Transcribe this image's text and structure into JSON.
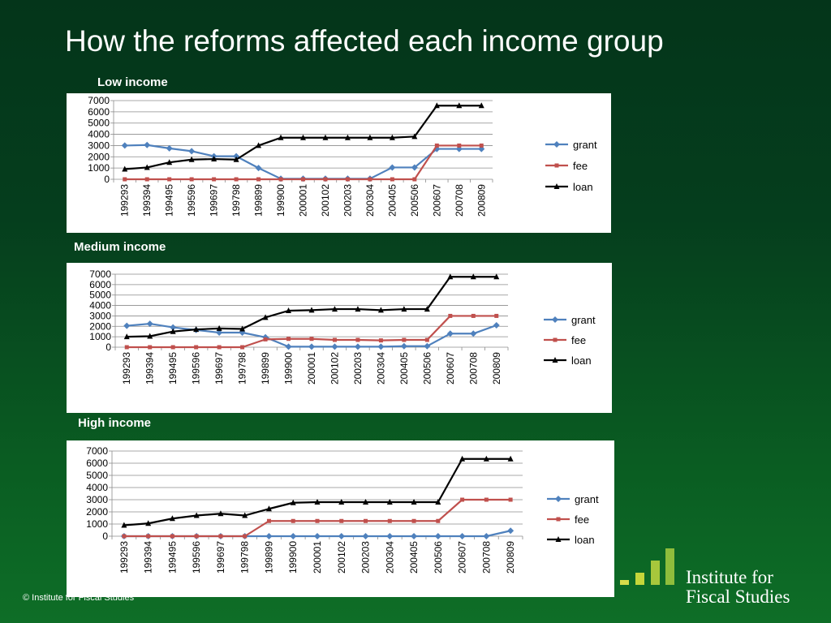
{
  "slide": {
    "title": "How the reforms affected each income group",
    "footer": "© Institute for Fiscal Studies",
    "logo": {
      "line1": "Institute for",
      "line2": "Fiscal Studies",
      "bar_colors": [
        "#d7dc4a",
        "#c5d63a",
        "#a7c73c",
        "#8fbd3c"
      ]
    }
  },
  "colors": {
    "grant": "#4f81bd",
    "fee": "#c0504d",
    "loan": "#000000"
  },
  "chart_data": [
    {
      "type": "line",
      "title": "Low income",
      "categories": [
        "199293",
        "199394",
        "199495",
        "199596",
        "199697",
        "199798",
        "199899",
        "199900",
        "200001",
        "200102",
        "200203",
        "200304",
        "200405",
        "200506",
        "200607",
        "200708",
        "200809"
      ],
      "ylim": [
        0,
        7000
      ],
      "yticks": [
        0,
        1000,
        2000,
        3000,
        4000,
        5000,
        6000,
        7000
      ],
      "grid": "horizontal",
      "legend": "right",
      "series": [
        {
          "name": "grant",
          "marker": "diamond",
          "values": [
            3000,
            3050,
            2750,
            2500,
            2050,
            2050,
            1000,
            50,
            50,
            50,
            50,
            50,
            1050,
            1050,
            2700,
            2700,
            2700
          ]
        },
        {
          "name": "fee",
          "marker": "square",
          "values": [
            0,
            0,
            0,
            0,
            0,
            0,
            0,
            0,
            0,
            0,
            0,
            0,
            0,
            0,
            3000,
            3000,
            3000
          ]
        },
        {
          "name": "loan",
          "marker": "triangle",
          "values": [
            900,
            1050,
            1500,
            1750,
            1800,
            1750,
            3000,
            3700,
            3700,
            3700,
            3700,
            3700,
            3700,
            3800,
            6550,
            6550,
            6550
          ]
        }
      ]
    },
    {
      "type": "line",
      "title": "Medium income",
      "categories": [
        "199293",
        "199394",
        "199495",
        "199596",
        "199697",
        "199798",
        "199899",
        "199900",
        "200001",
        "200102",
        "200203",
        "200304",
        "200405",
        "200506",
        "200607",
        "200708",
        "200809"
      ],
      "ylim": [
        0,
        7000
      ],
      "yticks": [
        0,
        1000,
        2000,
        3000,
        4000,
        5000,
        6000,
        7000
      ],
      "grid": "horizontal",
      "legend": "right",
      "series": [
        {
          "name": "grant",
          "marker": "diamond",
          "values": [
            2050,
            2250,
            1900,
            1650,
            1400,
            1400,
            950,
            50,
            50,
            50,
            50,
            50,
            100,
            100,
            1300,
            1300,
            2100
          ]
        },
        {
          "name": "fee",
          "marker": "square",
          "values": [
            0,
            0,
            0,
            0,
            0,
            0,
            750,
            800,
            800,
            700,
            700,
            650,
            700,
            700,
            3000,
            3000,
            3000
          ]
        },
        {
          "name": "loan",
          "marker": "triangle",
          "values": [
            1000,
            1050,
            1500,
            1700,
            1800,
            1750,
            2850,
            3500,
            3550,
            3650,
            3650,
            3550,
            3650,
            3650,
            6750,
            6750,
            6750
          ]
        }
      ]
    },
    {
      "type": "line",
      "title": "High income",
      "categories": [
        "199293",
        "199394",
        "199495",
        "199596",
        "199697",
        "199798",
        "199899",
        "199900",
        "200001",
        "200102",
        "200203",
        "200304",
        "200405",
        "200506",
        "200607",
        "200708",
        "200809"
      ],
      "ylim": [
        0,
        7000
      ],
      "yticks": [
        0,
        1000,
        2000,
        3000,
        4000,
        5000,
        6000,
        7000
      ],
      "grid": "horizontal",
      "legend": "right",
      "series": [
        {
          "name": "grant",
          "marker": "diamond",
          "values": [
            0,
            0,
            0,
            0,
            0,
            0,
            0,
            0,
            0,
            0,
            0,
            0,
            0,
            0,
            0,
            0,
            450
          ]
        },
        {
          "name": "fee",
          "marker": "square",
          "values": [
            0,
            0,
            0,
            0,
            0,
            0,
            1250,
            1250,
            1250,
            1250,
            1250,
            1250,
            1250,
            1250,
            3000,
            3000,
            3000
          ]
        },
        {
          "name": "loan",
          "marker": "triangle",
          "values": [
            900,
            1050,
            1450,
            1700,
            1850,
            1700,
            2250,
            2750,
            2800,
            2800,
            2800,
            2800,
            2800,
            2800,
            6350,
            6350,
            6350
          ]
        }
      ]
    }
  ]
}
